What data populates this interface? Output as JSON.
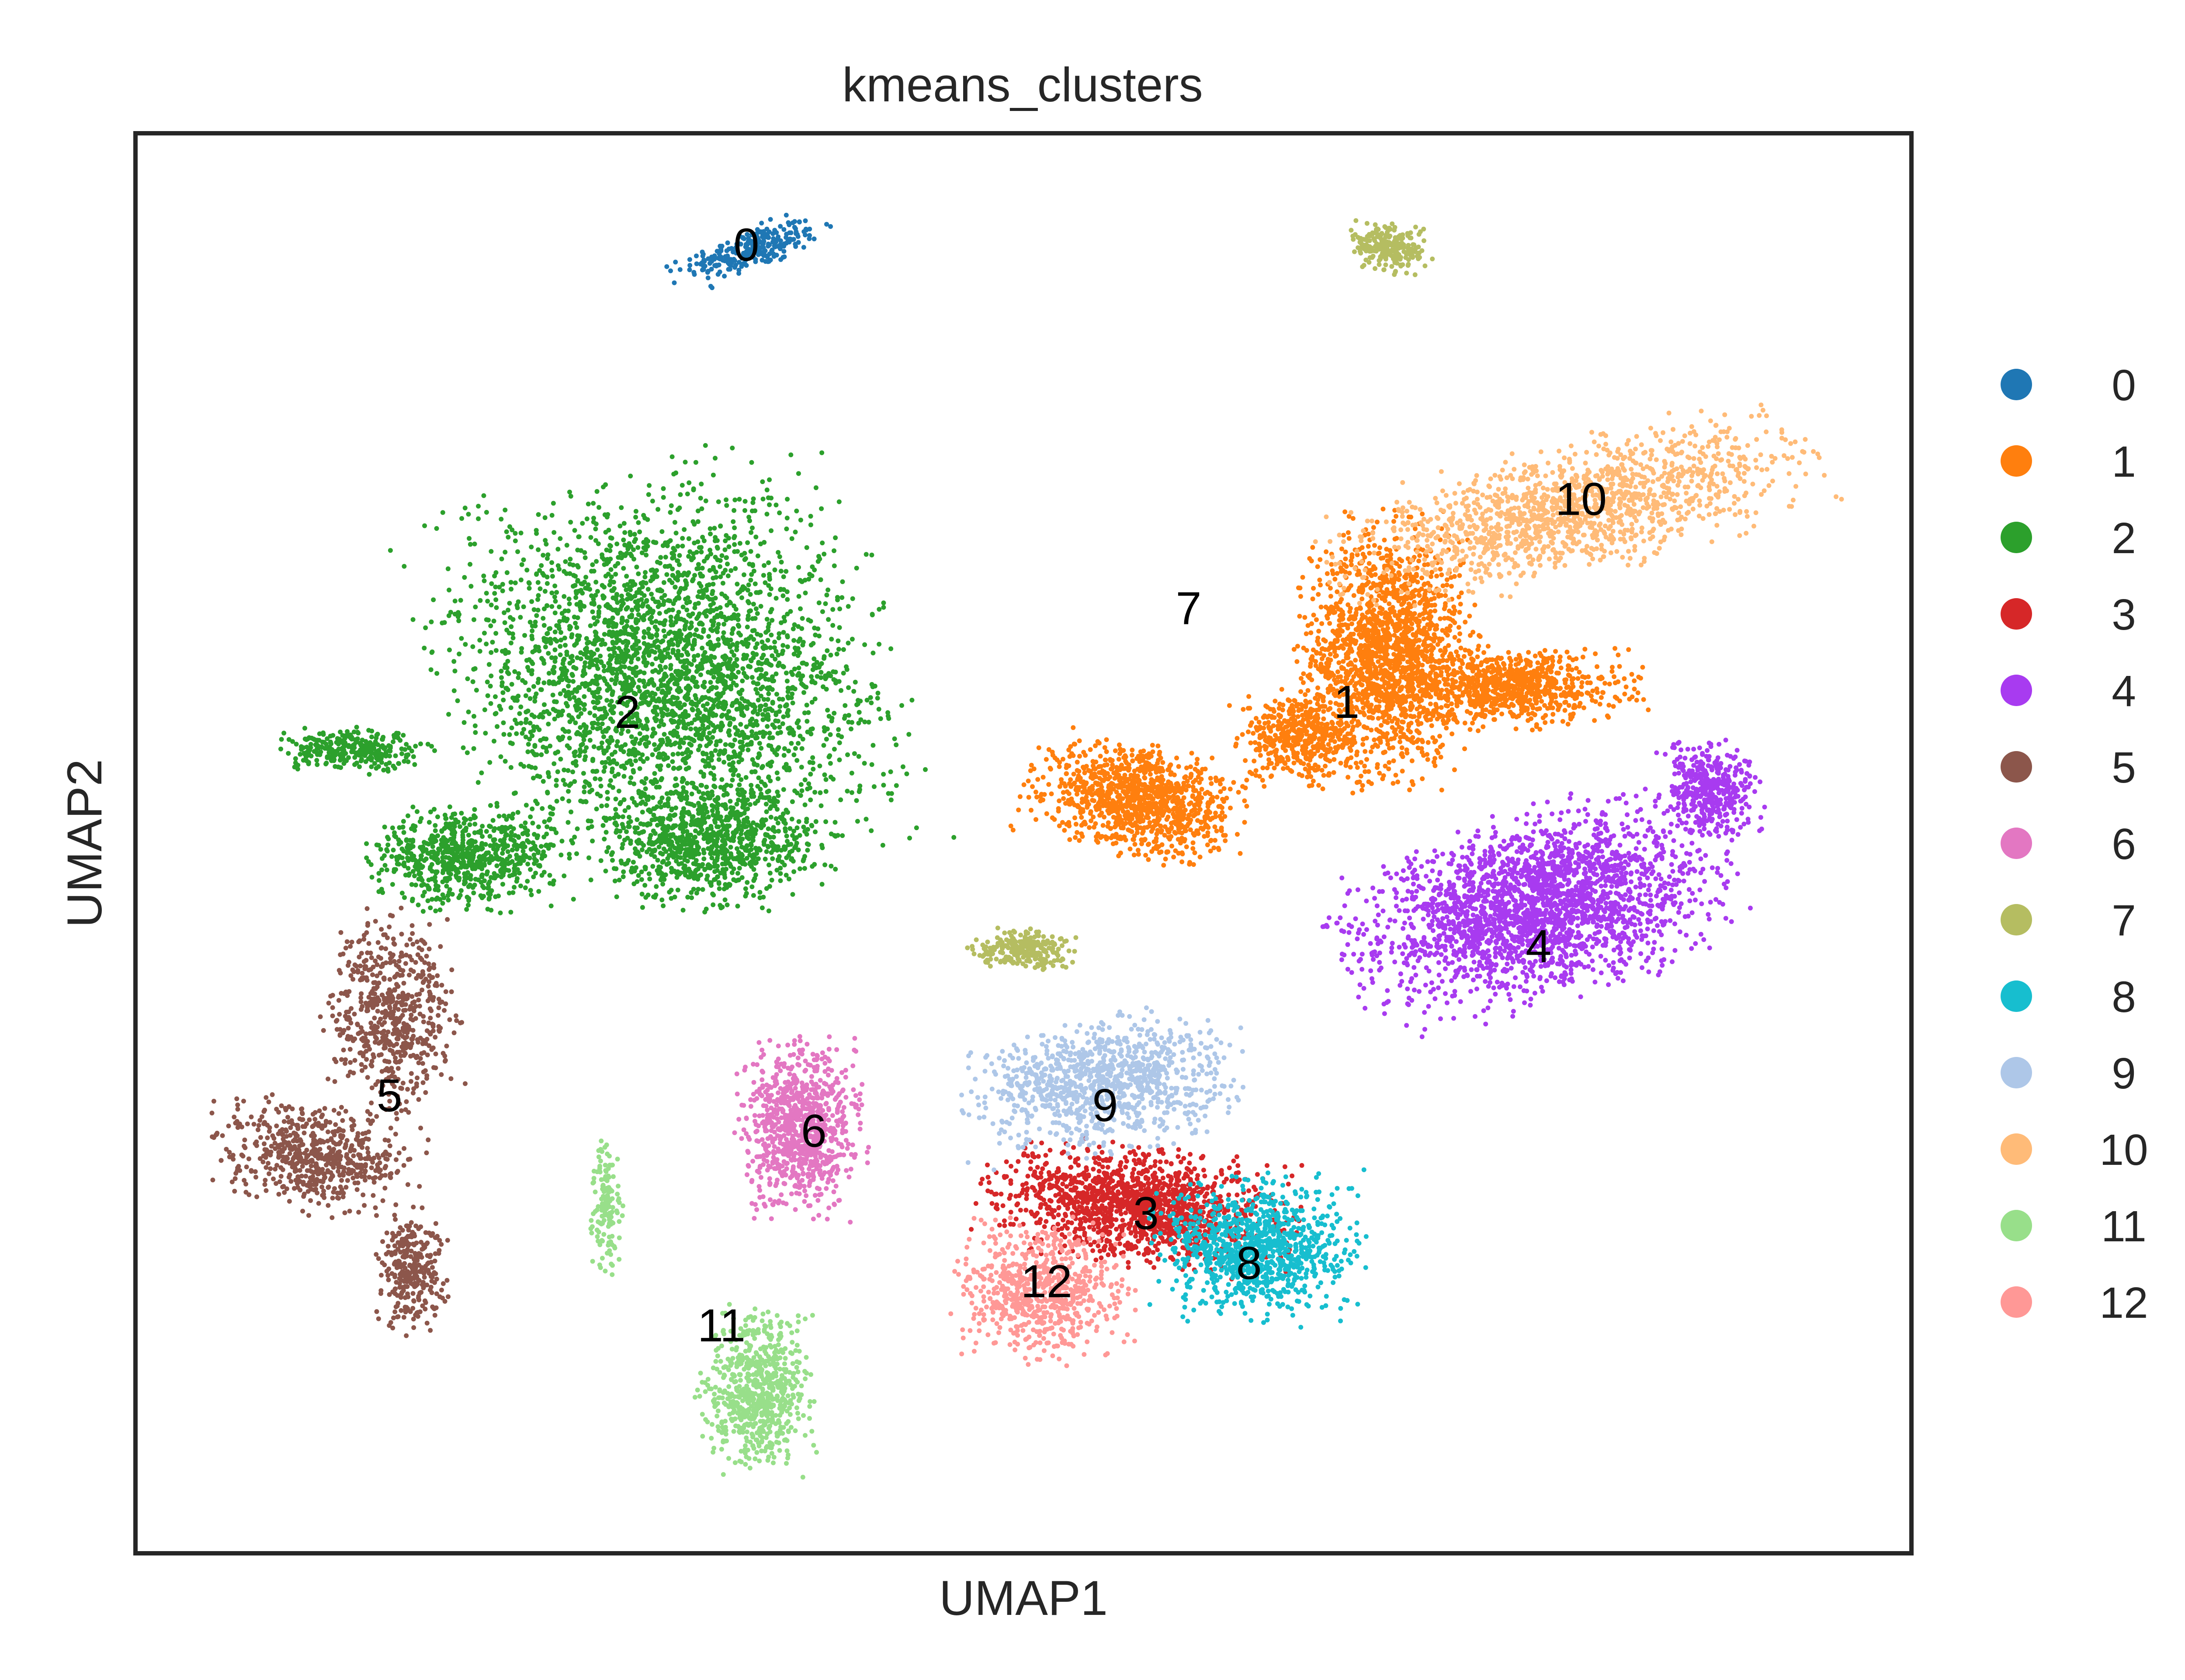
{
  "chart_data": {
    "type": "scatter",
    "title": "kmeans_clusters",
    "xlabel": "UMAP1",
    "ylabel": "UMAP2",
    "xlim": [
      0,
      100
    ],
    "ylim": [
      0,
      100
    ],
    "grid": false,
    "ticks": false,
    "legend_placement": "right",
    "clusters": [
      {
        "name": "0",
        "color": "#1f77b4",
        "label_pos": [
          34.4,
          92.2
        ],
        "blobs": [
          [
            34.7,
            91.8,
            3.6,
            1.2,
            260,
            0.38
          ]
        ]
      },
      {
        "name": "1",
        "color": "#ff7f0e",
        "label_pos": [
          68.2,
          60.0
        ],
        "blobs": [
          [
            70.5,
            63.5,
            3.8,
            7.2,
            1700,
            0
          ],
          [
            77.5,
            61.0,
            5.5,
            2.2,
            800,
            0
          ],
          [
            56.5,
            53.0,
            4.7,
            3.0,
            1100,
            -0.3
          ],
          [
            65.5,
            57.5,
            2.8,
            2.5,
            450,
            0
          ]
        ]
      },
      {
        "name": "2",
        "color": "#2ca02c",
        "label_pos": [
          27.7,
          59.3
        ],
        "blobs": [
          [
            30.0,
            62.0,
            9.5,
            11.0,
            3200,
            0.25
          ],
          [
            18.5,
            49.0,
            4.5,
            2.8,
            700,
            0
          ],
          [
            12.5,
            56.5,
            3.5,
            1.2,
            300,
            0
          ],
          [
            32.5,
            50.0,
            5.0,
            3.5,
            800,
            0
          ]
        ]
      },
      {
        "name": "3",
        "color": "#d62728",
        "label_pos": [
          56.9,
          24.0
        ],
        "blobs": [
          [
            56.5,
            24.5,
            6.5,
            3.2,
            1400,
            -0.15
          ]
        ]
      },
      {
        "name": "4",
        "color": "#a83bf0",
        "label_pos": [
          79.0,
          42.8
        ],
        "blobs": [
          [
            79.0,
            45.5,
            8.5,
            5.0,
            2400,
            0.35
          ],
          [
            88.7,
            53.8,
            2.3,
            2.7,
            400,
            0
          ]
        ]
      },
      {
        "name": "5",
        "color": "#8c564b",
        "label_pos": [
          14.3,
          32.3
        ],
        "blobs": [
          [
            14.5,
            38.0,
            3.0,
            5.5,
            600,
            0
          ],
          [
            10.0,
            28.0,
            4.5,
            3.0,
            600,
            -0.2
          ],
          [
            15.5,
            20.0,
            1.6,
            3.5,
            300,
            0
          ]
        ]
      },
      {
        "name": "6",
        "color": "#e377c2",
        "label_pos": [
          38.2,
          29.8
        ],
        "blobs": [
          [
            37.5,
            30.0,
            2.7,
            4.8,
            900,
            0
          ]
        ]
      },
      {
        "name": "7",
        "color": "#b5bd61",
        "label_pos": [
          59.3,
          66.6
        ],
        "blobs": [
          [
            70.5,
            92.0,
            1.9,
            1.4,
            250,
            -0.4
          ],
          [
            50.0,
            42.5,
            2.3,
            1.1,
            250,
            0
          ]
        ]
      },
      {
        "name": "8",
        "color": "#17becf",
        "label_pos": [
          62.7,
          20.5
        ],
        "blobs": [
          [
            63.0,
            21.5,
            4.5,
            4.0,
            1000,
            0
          ]
        ]
      },
      {
        "name": "9",
        "color": "#aec7e8",
        "label_pos": [
          54.6,
          31.6
        ],
        "blobs": [
          [
            54.5,
            33.0,
            6.0,
            3.6,
            1000,
            0.15
          ]
        ]
      },
      {
        "name": "10",
        "color": "#ffbb78",
        "label_pos": [
          81.4,
          74.3
        ],
        "blobs": [
          [
            81.0,
            73.5,
            10.5,
            3.6,
            1400,
            0.3
          ]
        ]
      },
      {
        "name": "11",
        "color": "#98df8a",
        "label_pos": [
          33.0,
          16.1
        ],
        "blobs": [
          [
            35.0,
            11.5,
            2.5,
            4.5,
            700,
            0
          ],
          [
            26.5,
            24.5,
            0.8,
            4.0,
            150,
            0
          ]
        ]
      },
      {
        "name": "12",
        "color": "#ff9896",
        "label_pos": [
          51.3,
          19.2
        ],
        "blobs": [
          [
            51.0,
            18.5,
            3.8,
            3.8,
            700,
            0
          ]
        ]
      }
    ]
  }
}
